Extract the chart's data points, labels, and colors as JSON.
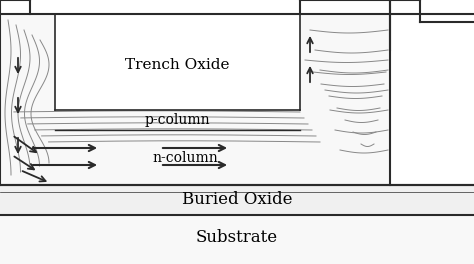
{
  "background_color": "#ffffff",
  "fig_width": 4.74,
  "fig_height": 2.64,
  "dpi": 100,
  "labels": {
    "trench_oxide": "Trench Oxide",
    "p_column": "p-column",
    "n_column": "n-column",
    "buried_oxide": "Buried Oxide",
    "substrate": "Substrate"
  },
  "line_color": "#2a2a2a",
  "contour_color": "#888888"
}
